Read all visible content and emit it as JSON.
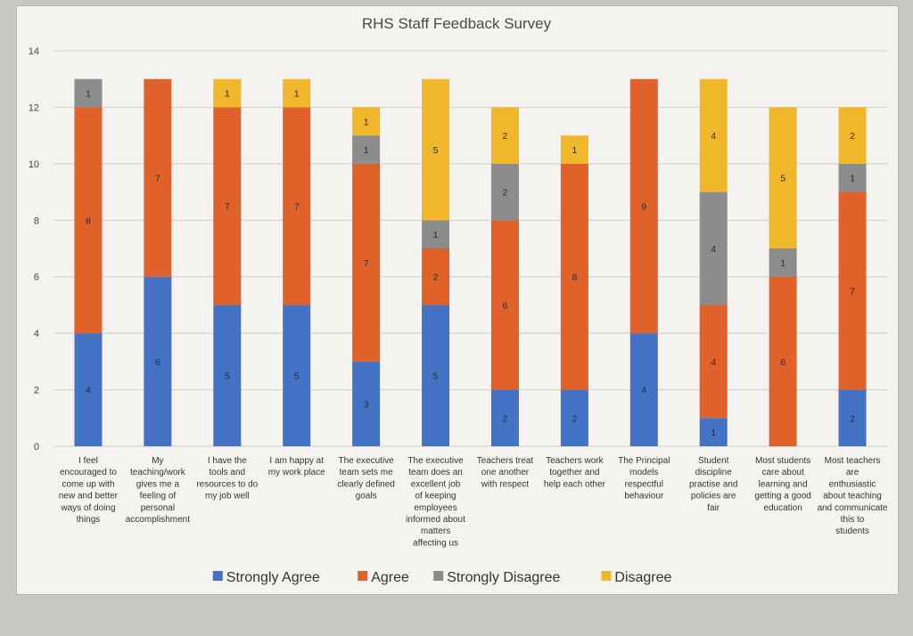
{
  "chart_data": {
    "type": "bar",
    "stacked": true,
    "title": "RHS Staff Feedback Survey",
    "xlabel": "",
    "ylabel": "",
    "ylim": [
      0,
      14
    ],
    "yticks": [
      0,
      2,
      4,
      6,
      8,
      10,
      12,
      14
    ],
    "grid": true,
    "legend_position": "bottom",
    "categories": [
      "I feel encouraged to come up with new and better ways of doing things",
      "My teaching/work gives me a feeling of personal accomplishment",
      "I have the tools and resources to do my job well",
      "I am happy at my work place",
      "The executive team sets me clearly defined goals",
      "The executive team does an excellent job of keeping employees informed about matters affecting us",
      "Teachers treat one another with respect",
      "Teachers work together and help each other",
      "The Principal models respectful behaviour",
      "Student discipline practise and policies are fair",
      "Most students care about learning and getting a good education",
      "Most teachers are enthusiastic about teaching and communicate this to students"
    ],
    "series": [
      {
        "name": "Strongly Agree",
        "color": "#4472c4",
        "values": [
          4,
          6,
          5,
          5,
          3,
          5,
          2,
          2,
          4,
          1,
          0,
          2
        ]
      },
      {
        "name": "Agree",
        "color": "#e0622a",
        "values": [
          8,
          7,
          7,
          7,
          7,
          2,
          6,
          8,
          9,
          4,
          6,
          7
        ]
      },
      {
        "name": "Strongly Disagree",
        "color": "#8c8c8c",
        "values": [
          1,
          0,
          0,
          0,
          1,
          1,
          2,
          0,
          0,
          4,
          1,
          1
        ]
      },
      {
        "name": "Disagree",
        "color": "#f0b72b",
        "values": [
          0,
          0,
          1,
          1,
          1,
          5,
          2,
          1,
          0,
          4,
          5,
          2
        ]
      }
    ]
  }
}
